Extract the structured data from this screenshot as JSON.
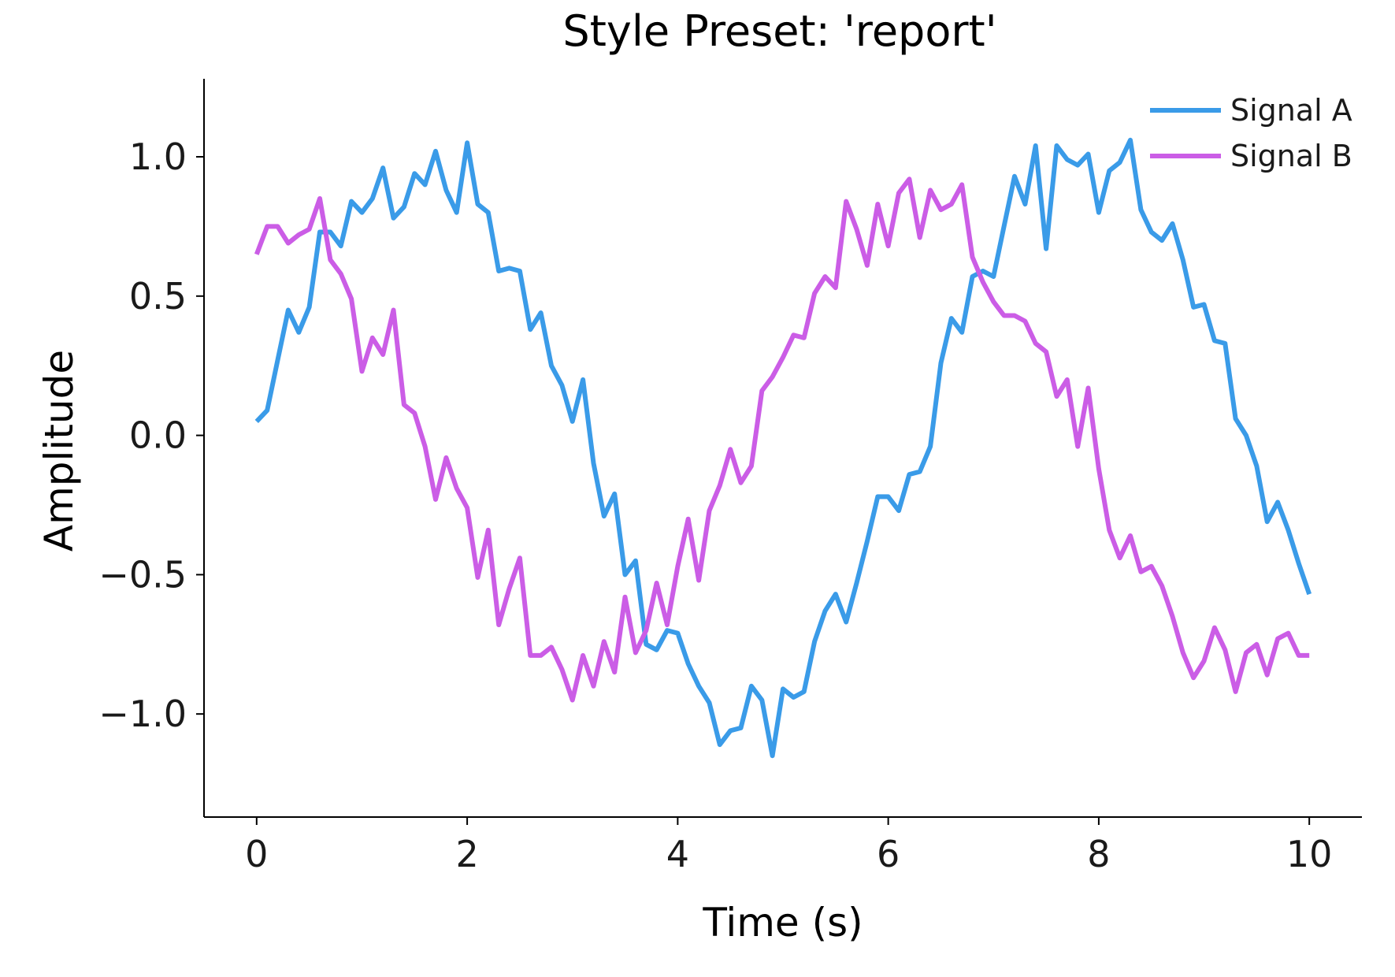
{
  "chart_data": {
    "type": "line",
    "title": "Style Preset: 'report'",
    "xlabel": "Time (s)",
    "ylabel": "Amplitude",
    "xlim": [
      -0.5,
      10.5
    ],
    "ylim": [
      -1.37,
      1.28
    ],
    "x_ticks": [
      0,
      2,
      4,
      6,
      8,
      10
    ],
    "x_tick_labels": [
      "0",
      "2",
      "4",
      "6",
      "8",
      "10"
    ],
    "y_ticks": [
      1.0,
      0.5,
      0.0,
      -0.5,
      -1.0
    ],
    "y_tick_labels": [
      "1.0",
      "0.5",
      "0.0",
      "−0.5",
      "−1.0"
    ],
    "grid": false,
    "legend_position": "top-right",
    "x": [
      0.0,
      0.1,
      0.2,
      0.3,
      0.4,
      0.5,
      0.6,
      0.7,
      0.8,
      0.9,
      1.0,
      1.1,
      1.2,
      1.3,
      1.4,
      1.5,
      1.6,
      1.7,
      1.8,
      1.9,
      2.0,
      2.1,
      2.2,
      2.3,
      2.4,
      2.5,
      2.6,
      2.7,
      2.8,
      2.9,
      3.0,
      3.1,
      3.2,
      3.3,
      3.4,
      3.5,
      3.6,
      3.7,
      3.8,
      3.9,
      4.0,
      4.1,
      4.2,
      4.3,
      4.4,
      4.5,
      4.6,
      4.7,
      4.8,
      4.9,
      5.0,
      5.1,
      5.2,
      5.3,
      5.4,
      5.5,
      5.6,
      5.7,
      5.8,
      5.9,
      6.0,
      6.1,
      6.2,
      6.3,
      6.4,
      6.5,
      6.6,
      6.7,
      6.8,
      6.9,
      7.0,
      7.1,
      7.2,
      7.3,
      7.4,
      7.5,
      7.6,
      7.7,
      7.8,
      7.9,
      8.0,
      8.1,
      8.2,
      8.3,
      8.4,
      8.5,
      8.6,
      8.7,
      8.8,
      8.9,
      9.0,
      9.1,
      9.2,
      9.3,
      9.4,
      9.5,
      9.6,
      9.7,
      9.8,
      9.9,
      10.0
    ],
    "series": [
      {
        "name": "Signal A",
        "color": "#3a9be8",
        "values": [
          0.05,
          0.09,
          0.27,
          0.45,
          0.37,
          0.46,
          0.73,
          0.73,
          0.68,
          0.84,
          0.8,
          0.85,
          0.96,
          0.78,
          0.82,
          0.94,
          0.9,
          1.02,
          0.88,
          0.8,
          1.05,
          0.83,
          0.8,
          0.59,
          0.6,
          0.59,
          0.38,
          0.44,
          0.25,
          0.18,
          0.05,
          0.2,
          -0.1,
          -0.29,
          -0.21,
          -0.5,
          -0.45,
          -0.75,
          -0.77,
          -0.7,
          -0.71,
          -0.82,
          -0.9,
          -0.96,
          -1.11,
          -1.06,
          -1.05,
          -0.9,
          -0.95,
          -1.15,
          -0.91,
          -0.94,
          -0.92,
          -0.74,
          -0.63,
          -0.57,
          -0.67,
          -0.53,
          -0.38,
          -0.22,
          -0.22,
          -0.27,
          -0.14,
          -0.13,
          -0.04,
          0.26,
          0.42,
          0.37,
          0.57,
          0.59,
          0.57,
          0.75,
          0.93,
          0.83,
          1.04,
          0.67,
          1.04,
          0.99,
          0.97,
          1.01,
          0.8,
          0.95,
          0.98,
          1.06,
          0.81,
          0.73,
          0.7,
          0.76,
          0.63,
          0.46,
          0.47,
          0.34,
          0.33,
          0.06,
          0.0,
          -0.11,
          -0.31,
          -0.24,
          -0.34,
          -0.46,
          -0.57
        ]
      },
      {
        "name": "Signal B",
        "color": "#cb5de6",
        "values": [
          0.65,
          0.75,
          0.75,
          0.69,
          0.72,
          0.74,
          0.85,
          0.63,
          0.58,
          0.49,
          0.23,
          0.35,
          0.29,
          0.45,
          0.11,
          0.08,
          -0.04,
          -0.23,
          -0.08,
          -0.19,
          -0.26,
          -0.51,
          -0.34,
          -0.68,
          -0.55,
          -0.44,
          -0.79,
          -0.79,
          -0.76,
          -0.84,
          -0.95,
          -0.79,
          -0.9,
          -0.74,
          -0.85,
          -0.58,
          -0.78,
          -0.7,
          -0.53,
          -0.68,
          -0.47,
          -0.3,
          -0.52,
          -0.27,
          -0.18,
          -0.05,
          -0.17,
          -0.11,
          0.16,
          0.21,
          0.28,
          0.36,
          0.35,
          0.51,
          0.57,
          0.53,
          0.84,
          0.74,
          0.61,
          0.83,
          0.68,
          0.87,
          0.92,
          0.71,
          0.88,
          0.81,
          0.83,
          0.9,
          0.64,
          0.55,
          0.48,
          0.43,
          0.43,
          0.41,
          0.33,
          0.3,
          0.14,
          0.2,
          -0.04,
          0.17,
          -0.12,
          -0.34,
          -0.44,
          -0.36,
          -0.49,
          -0.47,
          -0.54,
          -0.65,
          -0.78,
          -0.87,
          -0.81,
          -0.69,
          -0.77,
          -0.92,
          -0.78,
          -0.75,
          -0.86,
          -0.73,
          -0.71,
          -0.79,
          -0.79
        ]
      }
    ]
  }
}
